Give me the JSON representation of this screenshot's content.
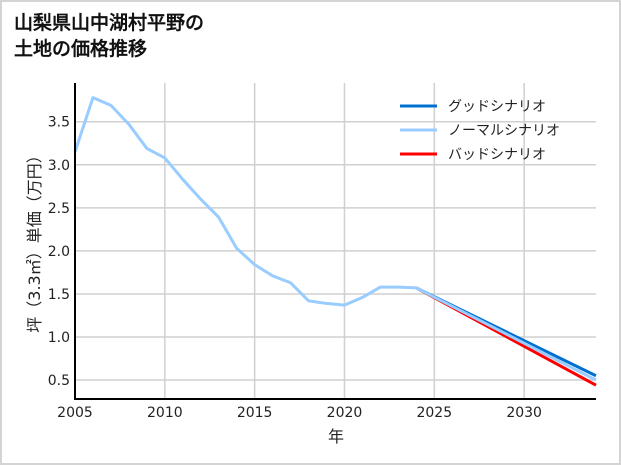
{
  "title_lines": [
    "山梨県山中湖村平野の",
    "土地の価格推移"
  ],
  "chart_data": {
    "type": "line",
    "title": "山梨県山中湖村平野の土地の価格推移",
    "xlabel": "年",
    "ylabel": "坪（3.3㎡）単価（万円）",
    "xlim": [
      2005,
      2034
    ],
    "ylim": [
      0.28,
      3.95
    ],
    "xticks": [
      2005,
      2010,
      2015,
      2020,
      2025,
      2030
    ],
    "yticks": [
      0.5,
      1.0,
      1.5,
      2.0,
      2.5,
      3.0,
      3.5
    ],
    "grid": true,
    "legend_position": "top-right",
    "series": [
      {
        "name": "グッドシナリオ",
        "color": "#0070d0",
        "x": [
          2024,
          2034
        ],
        "y": [
          1.57,
          0.55
        ]
      },
      {
        "name": "ノーマルシナリオ",
        "color": "#99ccff",
        "x": [
          2005,
          2006,
          2007,
          2008,
          2009,
          2010,
          2011,
          2012,
          2013,
          2014,
          2015,
          2016,
          2017,
          2018,
          2019,
          2020,
          2021,
          2022,
          2023,
          2024,
          2034
        ],
        "y": [
          3.15,
          3.78,
          3.69,
          3.47,
          3.19,
          3.08,
          2.83,
          2.6,
          2.39,
          2.03,
          1.84,
          1.71,
          1.63,
          1.42,
          1.39,
          1.37,
          1.46,
          1.58,
          1.58,
          1.57,
          0.5
        ]
      },
      {
        "name": "バッドシナリオ",
        "color": "#ff0000",
        "x": [
          2024,
          2034
        ],
        "y": [
          1.57,
          0.44
        ]
      }
    ]
  }
}
